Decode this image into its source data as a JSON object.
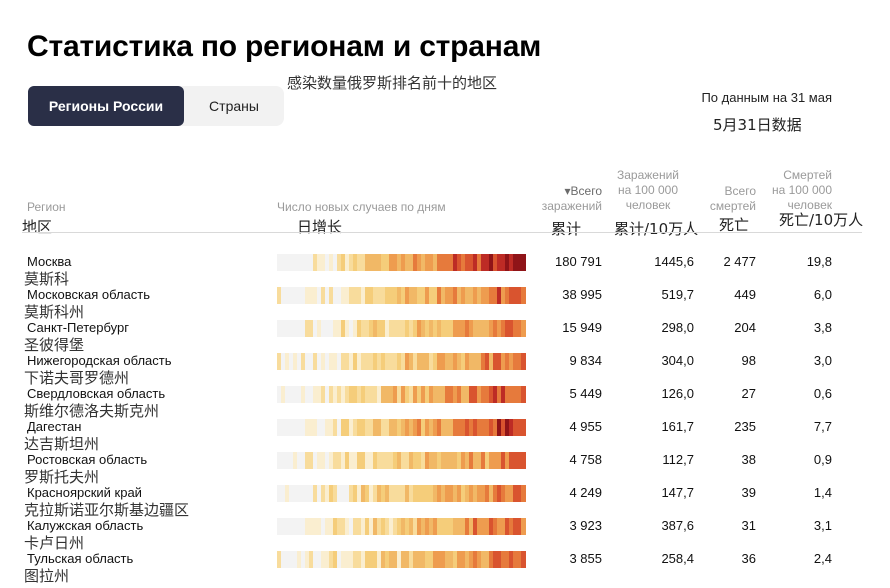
{
  "page": {
    "title": "Статистика по регионам и странам",
    "subtitle_zh": "感染数量俄罗斯排名前十的地区",
    "as_of": "По данным на 31 мая",
    "as_of_zh": "5月31日数据"
  },
  "tabs": [
    {
      "label": "Регионы России",
      "active": true
    },
    {
      "label": "Страны",
      "active": false
    }
  ],
  "columns": {
    "region": {
      "label": "Регион",
      "zh": "地区"
    },
    "daily": {
      "label": "Число новых случаев по дням",
      "zh": "日增长"
    },
    "total": {
      "label_line1": "▾Всего",
      "label_line2": "заражений",
      "zh": "累计"
    },
    "per100k": {
      "label_line1": "Заражений",
      "label_line2": "на 100 000",
      "label_line3": "человек",
      "zh": "累计/10万人"
    },
    "deaths": {
      "label_line1": "Всего",
      "label_line2": "смертей",
      "zh": "死亡"
    },
    "deaths_per100k": {
      "label_line1": "Смертей",
      "label_line2": "на 100 000",
      "label_line3": "человек",
      "zh": "死亡/10万人"
    }
  },
  "colors": {
    "accent_dark": "#2a2f47",
    "heat_scale": [
      "#f3f3f3",
      "#faeed0",
      "#f8dc9c",
      "#f5cd7a",
      "#f1b866",
      "#ee9c4f",
      "#e67a3c",
      "#d9542f",
      "#bd2b25",
      "#8f1418"
    ]
  },
  "rows": [
    {
      "name": "Москва",
      "zh": "莫斯科",
      "total": "180 791",
      "per100k": "1445,6",
      "deaths": "2 477",
      "deaths_per100k": "19,8",
      "intensity": 1.0
    },
    {
      "name": "Московская область",
      "zh": "莫斯科州",
      "total": "38 995",
      "per100k": "519,7",
      "deaths": "449",
      "deaths_per100k": "6,0",
      "intensity": 0.75
    },
    {
      "name": "Санкт-Петербург",
      "zh": "圣彼得堡",
      "total": "15 949",
      "per100k": "298,0",
      "deaths": "204",
      "deaths_per100k": "3,8",
      "intensity": 0.7
    },
    {
      "name": "Нижегородская область",
      "zh": "下诺夫哥罗德州",
      "total": "9 834",
      "per100k": "304,0",
      "deaths": "98",
      "deaths_per100k": "3,0",
      "intensity": 0.72
    },
    {
      "name": "Свердловская область",
      "zh": "斯维尔德洛夫斯克州",
      "total": "5 449",
      "per100k": "126,0",
      "deaths": "27",
      "deaths_per100k": "0,6",
      "intensity": 0.8
    },
    {
      "name": "Дагестан",
      "zh": "达吉斯坦州",
      "total": "4 955",
      "per100k": "161,7",
      "deaths": "235",
      "deaths_per100k": "7,7",
      "intensity": 0.9
    },
    {
      "name": "Ростовская область",
      "zh": "罗斯托夫州",
      "total": "4 758",
      "per100k": "112,7",
      "deaths": "38",
      "deaths_per100k": "0,9",
      "intensity": 0.65
    },
    {
      "name": "Красноярский край",
      "zh": "克拉斯诺亚尔斯基边疆区",
      "total": "4 249",
      "per100k": "147,7",
      "deaths": "39",
      "deaths_per100k": "1,4",
      "intensity": 0.7
    },
    {
      "name": "Калужская область",
      "zh": "卡卢日州",
      "total": "3 923",
      "per100k": "387,6",
      "deaths": "31",
      "deaths_per100k": "3,1",
      "intensity": 0.72
    },
    {
      "name": "Тульская область",
      "zh": "图拉州",
      "total": "3 855",
      "per100k": "258,4",
      "deaths": "36",
      "deaths_per100k": "2,4",
      "intensity": 0.7
    }
  ]
}
